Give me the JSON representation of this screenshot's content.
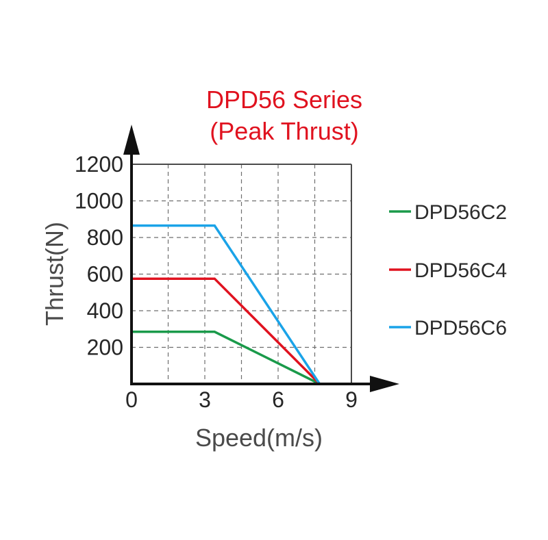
{
  "chart_data": {
    "type": "line",
    "title": [
      "DPD56 Series",
      "(Peak Thrust)"
    ],
    "xlabel": "Speed(m/s)",
    "ylabel": "Thrust(N)",
    "xlim": [
      0,
      9
    ],
    "ylim": [
      0,
      1200
    ],
    "x_ticks": [
      0,
      3,
      6,
      9
    ],
    "y_ticks": [
      200,
      400,
      600,
      800,
      1000,
      1200
    ],
    "x_grid": [
      1.5,
      3,
      4.5,
      6,
      7.5
    ],
    "y_grid": [
      200,
      400,
      600,
      800,
      1000
    ],
    "grid": "dashed",
    "legend_position": "right",
    "series": [
      {
        "name": "DPD56C2",
        "color": "#1a9a4a",
        "points": [
          [
            0,
            285
          ],
          [
            3.4,
            285
          ],
          [
            7.7,
            0
          ]
        ]
      },
      {
        "name": "DPD56C4",
        "color": "#e0121f",
        "points": [
          [
            0,
            575
          ],
          [
            3.4,
            575
          ],
          [
            7.7,
            0
          ]
        ]
      },
      {
        "name": "DPD56C6",
        "color": "#1aa3e8",
        "points": [
          [
            0,
            865
          ],
          [
            3.4,
            865
          ],
          [
            7.7,
            0
          ]
        ]
      }
    ]
  }
}
